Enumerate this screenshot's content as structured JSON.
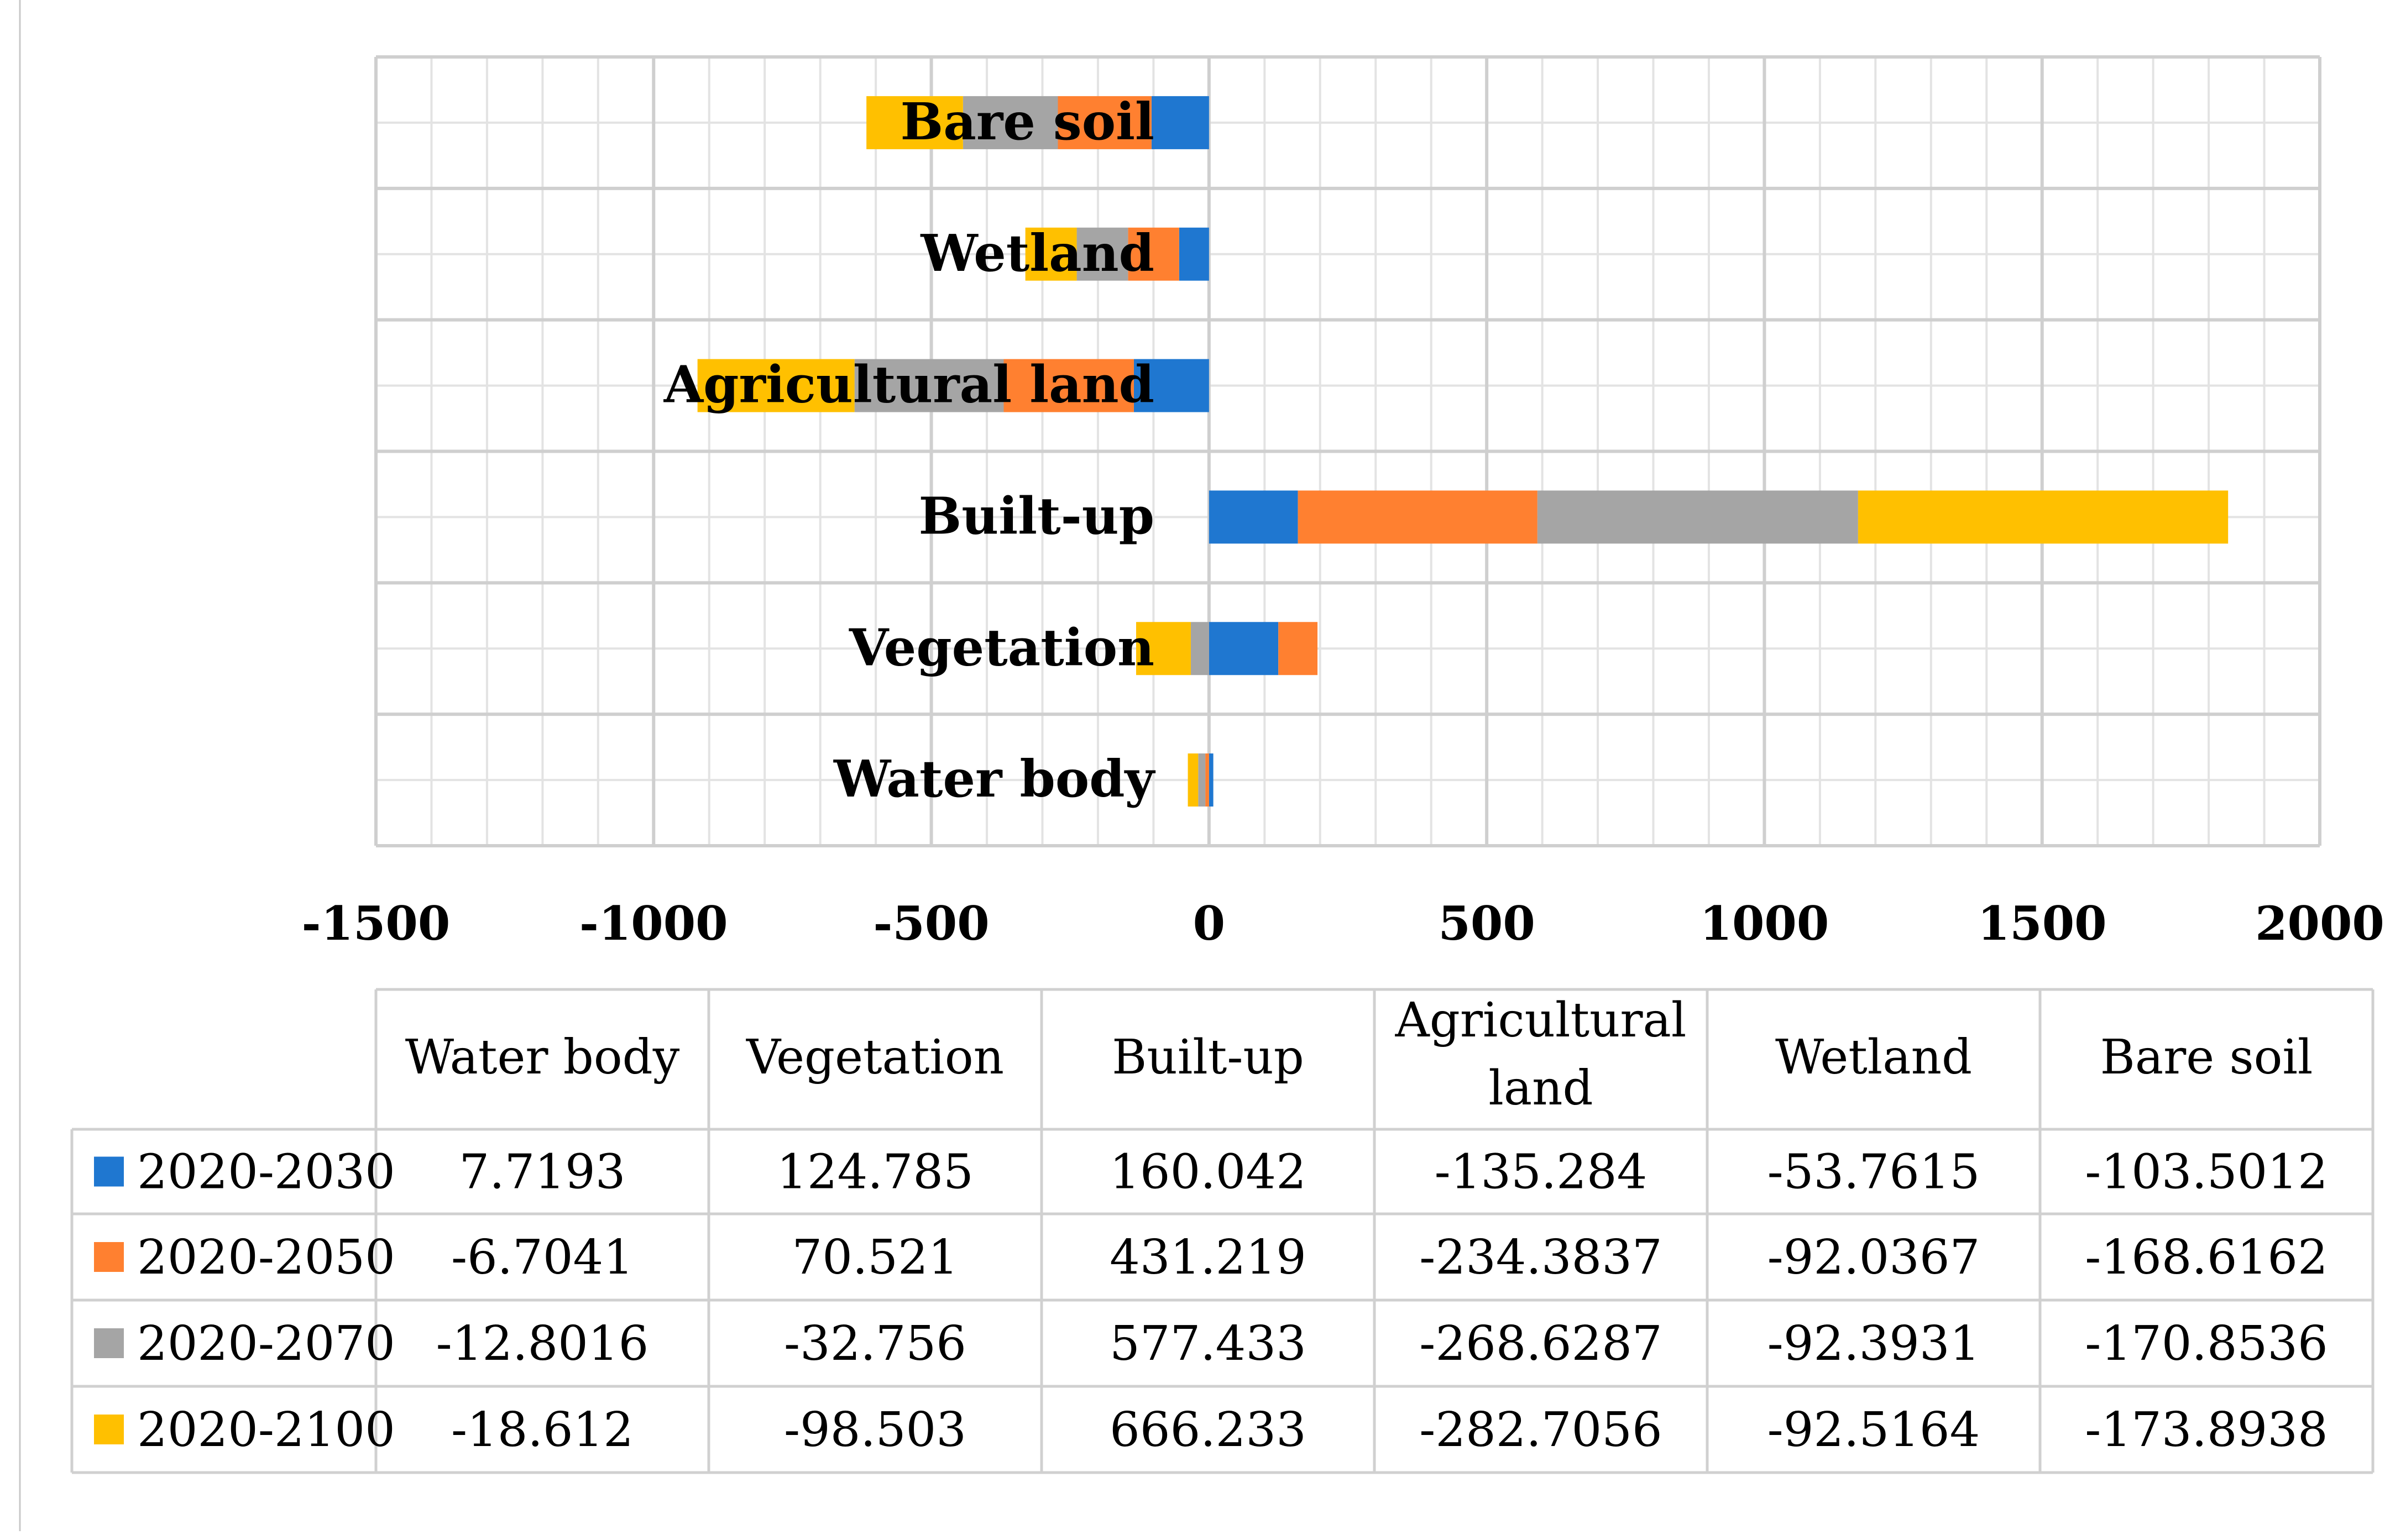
{
  "chart_data": {
    "type": "bar",
    "orientation": "horizontal",
    "stacked": true,
    "categories": [
      "Water body",
      "Vegetation",
      "Built-up",
      "Agricultural land",
      "Wetland",
      "Bare soil"
    ],
    "table_headers": [
      "Water body",
      "Vegetation",
      "Built-up",
      "Agricultural land",
      "Wetland",
      "Bare soil"
    ],
    "series": [
      {
        "name": "2020-2030",
        "color": "#1f77d0",
        "values": [
          7.7193,
          124.785,
          160.042,
          -135.284,
          -53.7615,
          -103.5012
        ],
        "display": [
          "7.7193",
          "124.785",
          "160.042",
          "-135.284",
          "-53.7615",
          "-103.5012"
        ]
      },
      {
        "name": "2020-2050",
        "color": "#ff8030",
        "values": [
          -6.7041,
          70.521,
          431.219,
          -234.3837,
          -92.0367,
          -168.6162
        ],
        "display": [
          "-6.7041",
          "70.521",
          "431.219",
          "-234.3837",
          "-92.0367",
          "-168.6162"
        ]
      },
      {
        "name": "2020-2070",
        "color": "#a5a5a5",
        "values": [
          -12.8016,
          -32.756,
          577.433,
          -268.6287,
          -92.3931,
          -170.8536
        ],
        "display": [
          "-12.8016",
          "-32.756",
          "577.433",
          "-268.6287",
          "-92.3931",
          "-170.8536"
        ]
      },
      {
        "name": "2020-2100",
        "color": "#ffc000",
        "values": [
          -18.612,
          -98.503,
          666.233,
          -282.7056,
          -92.5164,
          -173.8938
        ],
        "display": [
          "-18.612",
          "-98.503",
          "666.233",
          "-282.7056",
          "-92.5164",
          "-173.8938"
        ]
      }
    ],
    "xlim": [
      -1500,
      2000
    ],
    "xticks": [
      "-1500",
      "-1000",
      "-500",
      "0",
      "500",
      "1000",
      "1500",
      "2000"
    ],
    "grid": true,
    "legend": "data table below chart"
  }
}
